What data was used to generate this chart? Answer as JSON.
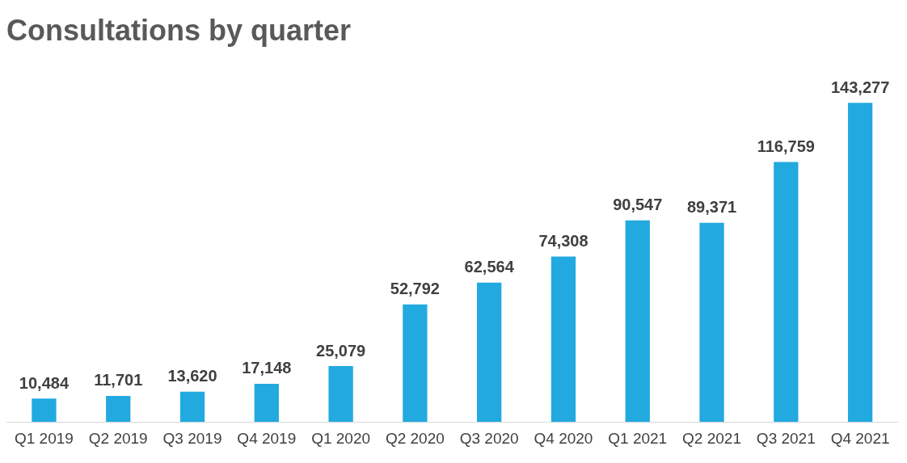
{
  "chart_data": {
    "type": "bar",
    "title": "Consultations by quarter",
    "categories": [
      "Q1 2019",
      "Q2 2019",
      "Q3 2019",
      "Q4 2019",
      "Q1 2020",
      "Q2 2020",
      "Q3 2020",
      "Q4 2020",
      "Q1 2021",
      "Q2 2021",
      "Q3 2021",
      "Q4 2021"
    ],
    "values": [
      10484,
      11701,
      13620,
      17148,
      25079,
      52792,
      62564,
      74308,
      90547,
      89371,
      116759,
      143277
    ],
    "value_labels": [
      "10,484",
      "11,701",
      "13,620",
      "17,148",
      "25,079",
      "52,792",
      "62,564",
      "74,308",
      "90,547",
      "89,371",
      "116,759",
      "143,277"
    ],
    "color": "#22a9e0",
    "grid": false,
    "legend": false
  }
}
